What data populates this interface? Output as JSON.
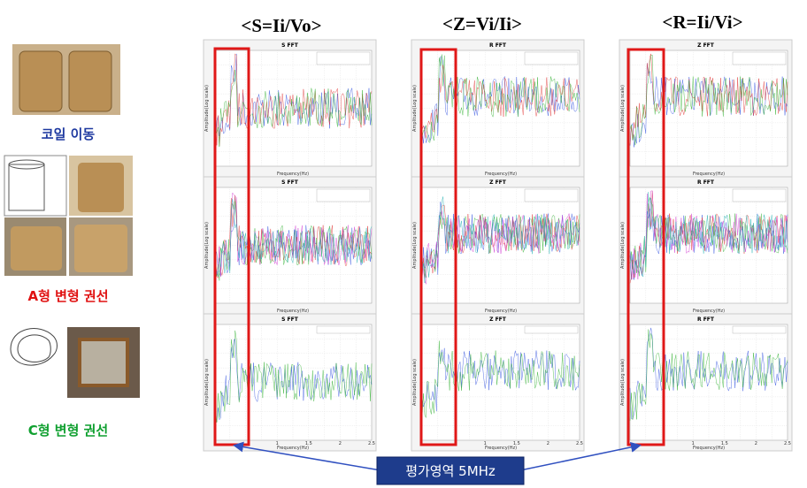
{
  "headers": [
    "<S=Ii/Vo>",
    "<Z=Vi/Ii>",
    "<R=Ii/Vi>"
  ],
  "panels": [
    {
      "title": "S FFT"
    },
    {
      "title": "R FFT"
    },
    {
      "title": "Z FFT"
    },
    {
      "title": "S FFT"
    },
    {
      "title": "Z FFT"
    },
    {
      "title": "R FFT"
    },
    {
      "title": "S FFT"
    },
    {
      "title": "Z FFT"
    },
    {
      "title": "R FFT"
    }
  ],
  "axis": {
    "x_label": "Frequency(Hz)",
    "y_label": "Amplitude(Log scale)",
    "xticks": [
      "1",
      "1.5",
      "2",
      "2.5"
    ]
  },
  "left_labels": [
    "코일 이동",
    "A형 변형 권선",
    "C형 변형 권선"
  ],
  "callout": "평가영역 5MHz"
}
